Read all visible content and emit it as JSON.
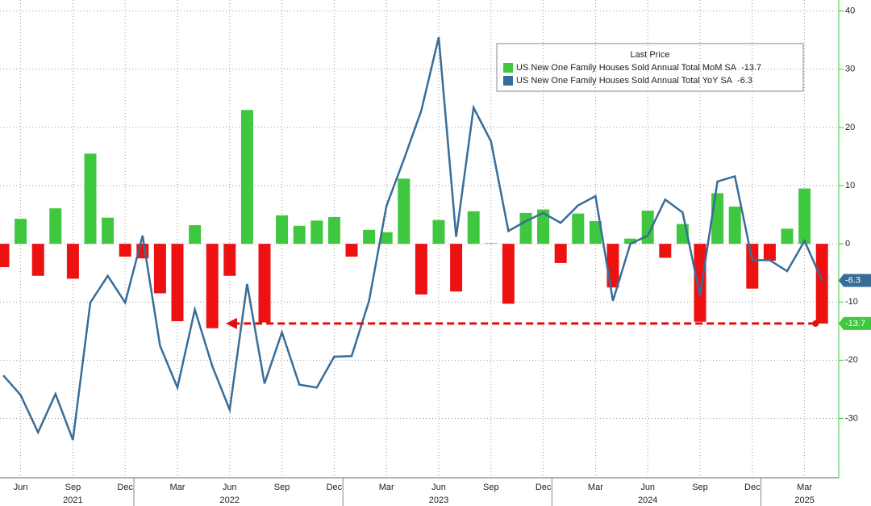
{
  "chart_data": {
    "type": "bar_line",
    "legend_title": "Last Price",
    "categories": [
      null,
      "Jun",
      null,
      null,
      "Sep",
      null,
      null,
      "Dec",
      null,
      null,
      "Mar",
      null,
      null,
      "Jun",
      null,
      null,
      "Sep",
      null,
      null,
      "Dec",
      null,
      null,
      "Mar",
      null,
      null,
      "Jun",
      null,
      null,
      "Sep",
      null,
      null,
      "Dec",
      null,
      null,
      "Mar",
      null,
      null,
      "Jun",
      null,
      null,
      "Sep",
      null,
      null,
      "Dec",
      null,
      null,
      "Mar",
      null
    ],
    "year_labels": [
      "2021",
      "2022",
      "2023",
      "2024",
      "2025"
    ],
    "series": [
      {
        "name": "US New One Family Houses Sold Annual Total MoM SA",
        "type": "bar",
        "color": "#3fc73f",
        "negative_color": "#ee1111",
        "values": [
          -4,
          4.3,
          -5.5,
          6.1,
          -6,
          15.5,
          4.5,
          -2.2,
          -2.5,
          -8.5,
          -13.3,
          3.2,
          -14.5,
          -5.5,
          23,
          -13.5,
          4.9,
          3.1,
          4,
          4.6,
          -2.2,
          2.4,
          2,
          11.2,
          -8.7,
          4.1,
          -8.2,
          5.6,
          0.1,
          -10.3,
          5.3,
          5.9,
          -3.3,
          5.2,
          3.9,
          -7.5,
          0.9,
          5.7,
          -2.4,
          3.4,
          -13.4,
          8.7,
          6.4,
          -7.7,
          -2.9,
          2.6,
          9.5,
          -13.7
        ]
      },
      {
        "name": "US New One Family Houses Sold Annual Total YoY SA",
        "type": "line",
        "color": "#386d99",
        "values": [
          -22.6,
          -26,
          -32.4,
          -25.8,
          -33.7,
          -10.1,
          -5.5,
          -10.1,
          1.4,
          -17.5,
          -24.7,
          -11.3,
          -21,
          -28.5,
          -6.9,
          -24,
          -15.2,
          -24.2,
          -24.7,
          -19.4,
          -19.3,
          -9.8,
          6.5,
          14.5,
          22.9,
          35.5,
          1.2,
          23.4,
          17.6,
          2.2,
          3.9,
          5.3,
          3.6,
          6.6,
          8.2,
          -9.8,
          0,
          1.4,
          7.6,
          5.4,
          -8.9,
          10.7,
          11.6,
          -2.8,
          -2.8,
          -4.7,
          0.5,
          -6.3
        ]
      }
    ],
    "ylim": [
      -40.2,
      41.9
    ],
    "yticks": [
      40,
      30,
      20,
      10,
      0,
      -10,
      -20,
      -30
    ],
    "grid": true
  }
}
